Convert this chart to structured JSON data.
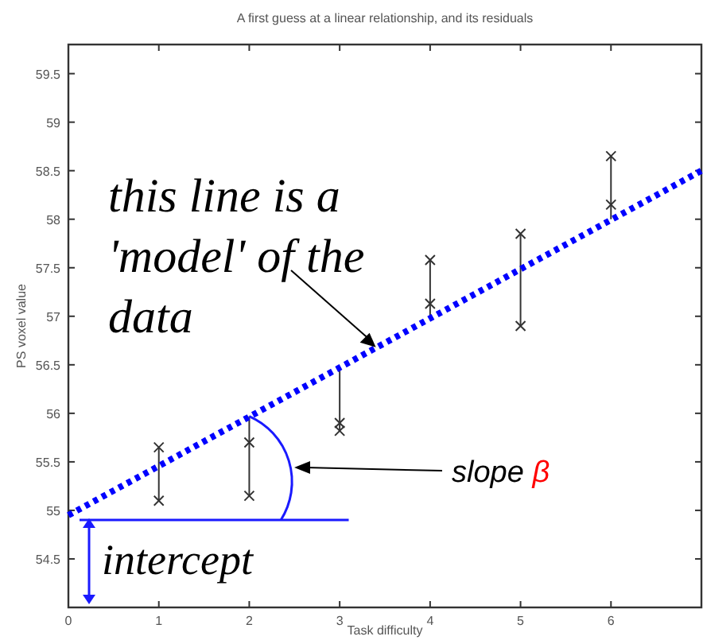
{
  "chart_data": {
    "type": "scatter",
    "title": "A first guess at a linear relationship, and its residuals",
    "xlabel": "Task difficulty",
    "ylabel": "PS voxel value",
    "xlim": [
      0,
      7
    ],
    "xticks": [
      0,
      1,
      2,
      3,
      4,
      5,
      6
    ],
    "ylim": [
      54,
      59.8
    ],
    "yticks": [
      54.5,
      55,
      55.5,
      56,
      56.5,
      57,
      57.5,
      58,
      58.5,
      59,
      59.5
    ],
    "marker": "cross",
    "series": [
      {
        "type": "line",
        "color": "#333333",
        "line_style": "solid",
        "marker": "none",
        "x": [
          1,
          1
        ],
        "values": [
          55.1,
          55.65
        ]
      },
      {
        "type": "line",
        "color": "#333333",
        "line_style": "solid",
        "marker": "none",
        "x": [
          2,
          2
        ],
        "values": [
          55.15,
          55.97
        ]
      },
      {
        "type": "line",
        "color": "#333333",
        "line_style": "solid",
        "marker": "none",
        "x": [
          3,
          3
        ],
        "values": [
          55.82,
          56.47
        ]
      },
      {
        "type": "line",
        "color": "#333333",
        "line_style": "solid",
        "marker": "none",
        "x": [
          4,
          4
        ],
        "values": [
          56.98,
          57.58
        ]
      },
      {
        "type": "line",
        "color": "#333333",
        "line_style": "solid",
        "marker": "none",
        "x": [
          5,
          5
        ],
        "values": [
          56.9,
          57.85
        ]
      },
      {
        "type": "line",
        "color": "#333333",
        "line_style": "solid",
        "marker": "none",
        "x": [
          6,
          6
        ],
        "values": [
          58.0,
          58.65
        ]
      },
      {
        "color": "#333333",
        "x": [
          1,
          1,
          2,
          2,
          3,
          3,
          4,
          4,
          5,
          5,
          6,
          6
        ],
        "values": [
          55.65,
          55.1,
          55.7,
          55.15,
          55.9,
          55.82,
          57.58,
          57.13,
          57.85,
          56.9,
          58.65,
          58.15
        ]
      },
      {
        "type": "line",
        "color": "#0000ff",
        "line_style": "dotted",
        "marker": "none",
        "x": [
          0,
          7
        ],
        "values": [
          54.95,
          58.5
        ]
      }
    ],
    "annotations": [
      {
        "text": "this line is a 'model' of the data",
        "x": 3.4,
        "y": 56.68
      },
      "slope β",
      {
        "text": "intercept",
        "x": 0,
        "y": 54.95
      }
    ],
    "grid": false
  }
}
